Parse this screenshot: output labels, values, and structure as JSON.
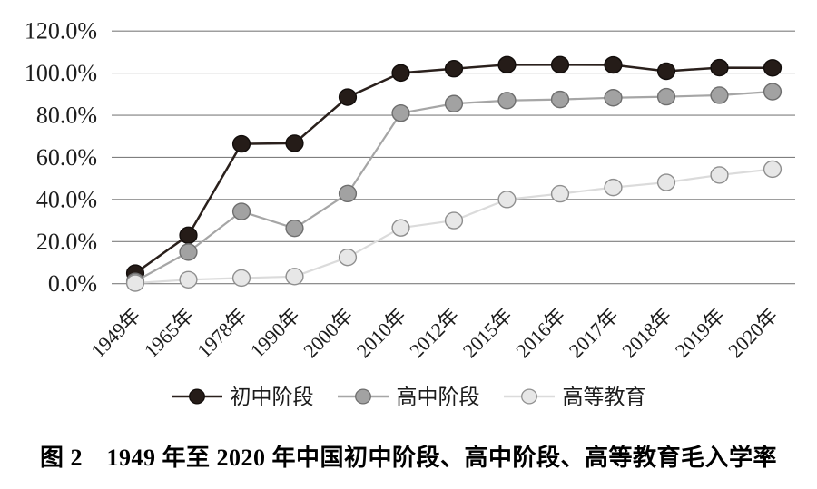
{
  "figure": {
    "caption": "图 2　1949 年至 2020 年中国初中阶段、高中阶段、高等教育毛入学率"
  },
  "chart_data": {
    "type": "line",
    "title": "图 2　1949 年至 2020 年中国初中阶段、高中阶段、高等教育毛入学率",
    "xlabel": "",
    "ylabel": "",
    "unit": "%",
    "categories": [
      "1949年",
      "1965年",
      "1978年",
      "1990年",
      "2000年",
      "2010年",
      "2012年",
      "2015年",
      "2016年",
      "2017年",
      "2018年",
      "2019年",
      "2020年"
    ],
    "series": [
      {
        "name": "初中阶段",
        "values": [
          5.0,
          23.0,
          66.4,
          66.7,
          88.6,
          100.1,
          102.1,
          104.0,
          104.0,
          103.9,
          100.9,
          102.6,
          102.5
        ],
        "line_color": "#2a201c",
        "dot_fill": "#251c18",
        "dot_stroke": "#120d0b"
      },
      {
        "name": "高中阶段",
        "values": [
          1.1,
          15.0,
          34.3,
          26.3,
          42.8,
          81.0,
          85.5,
          87.0,
          87.5,
          88.3,
          88.8,
          89.5,
          91.2
        ],
        "line_color": "#a6a6a6",
        "dot_fill": "#a2a2a2",
        "dot_stroke": "#6e6e6e"
      },
      {
        "name": "高等教育",
        "values": [
          0.3,
          1.9,
          2.7,
          3.4,
          12.5,
          26.5,
          30.0,
          40.0,
          42.7,
          45.7,
          48.1,
          51.6,
          54.4
        ],
        "line_color": "#dbdbdb",
        "dot_fill": "#e7e7e7",
        "dot_stroke": "#8f8f8f"
      }
    ],
    "y_ticks": [
      {
        "value": 0,
        "label": "0.0%"
      },
      {
        "value": 20,
        "label": "20.0%"
      },
      {
        "value": 40,
        "label": "40.0%"
      },
      {
        "value": 60,
        "label": "60.0%"
      },
      {
        "value": 80,
        "label": "80.0%"
      },
      {
        "value": 100,
        "label": "100.0%"
      },
      {
        "value": 120,
        "label": "120.0%"
      }
    ],
    "ylim": [
      0,
      120
    ],
    "grid": true,
    "grid_color": "#7f7f7f",
    "background_color": "#ffffff",
    "legend_position": "bottom"
  }
}
